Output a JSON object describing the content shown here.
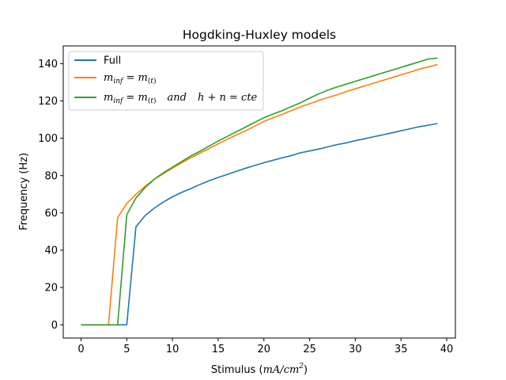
{
  "chart_data": {
    "type": "line",
    "title": "Hogdking-Huxley models",
    "xlabel": "Stimulus",
    "xlabel_math": "(mA/cm²)",
    "ylabel": "Frequency (Hz)",
    "xlim": [
      -1.95,
      40.95
    ],
    "ylim": [
      -7.1,
      149.5
    ],
    "xticks": [
      0,
      5,
      10,
      15,
      20,
      25,
      30,
      35,
      40
    ],
    "yticks": [
      0,
      20,
      40,
      60,
      80,
      100,
      120,
      140
    ],
    "grid": false,
    "legend_position": "top-left",
    "series": [
      {
        "name": "Full",
        "color": "#1f77b4",
        "x": [
          0,
          1,
          2,
          3,
          4,
          5,
          6,
          7,
          8,
          9,
          10,
          11,
          12,
          13,
          14,
          15,
          16,
          17,
          18,
          19,
          20,
          21,
          22,
          23,
          24,
          25,
          26,
          27,
          28,
          29,
          30,
          31,
          32,
          33,
          34,
          35,
          36,
          37,
          38,
          39
        ],
        "y": [
          0,
          0,
          0,
          0,
          0,
          0,
          52.5,
          58.5,
          62.5,
          65.8,
          68.6,
          71.0,
          73.0,
          75.2,
          77.2,
          79.0,
          80.6,
          82.3,
          83.9,
          85.4,
          86.9,
          88.2,
          89.5,
          90.7,
          92.2,
          93.2,
          94.2,
          95.4,
          96.6,
          97.5,
          98.7,
          99.7,
          100.8,
          101.8,
          102.9,
          104.0,
          105.1,
          106.2,
          107.0,
          107.9
        ]
      },
      {
        "name": "m_inf = m(t)",
        "name_display": "m_inf = m_(t)",
        "color": "#ff7f0e",
        "x": [
          0,
          1,
          2,
          3,
          4,
          5,
          6,
          7,
          8,
          9,
          10,
          11,
          12,
          13,
          14,
          15,
          16,
          17,
          18,
          19,
          20,
          21,
          22,
          23,
          24,
          25,
          26,
          27,
          28,
          29,
          30,
          31,
          32,
          33,
          34,
          35,
          36,
          37,
          38,
          39
        ],
        "y": [
          0,
          0,
          0,
          0,
          57.5,
          65.0,
          70.0,
          74.2,
          78.0,
          81.0,
          84.0,
          86.8,
          89.5,
          92.0,
          94.5,
          97.0,
          99.5,
          101.8,
          104.0,
          106.5,
          109.0,
          111.0,
          112.8,
          114.8,
          116.8,
          118.5,
          120.2,
          121.8,
          123.3,
          125.0,
          126.5,
          128.0,
          129.5,
          131.0,
          132.5,
          134.0,
          135.5,
          137.0,
          138.3,
          139.5
        ]
      },
      {
        "name": "m_inf = m(t) and h + n = cte",
        "name_display": "m_inf = m_(t)   and   h + n = cte",
        "color": "#2ca02c",
        "x": [
          0,
          1,
          2,
          3,
          4,
          5,
          6,
          7,
          8,
          9,
          10,
          11,
          12,
          13,
          14,
          15,
          16,
          17,
          18,
          19,
          20,
          21,
          22,
          23,
          24,
          25,
          26,
          27,
          28,
          29,
          30,
          31,
          32,
          33,
          34,
          35,
          36,
          37,
          38,
          39
        ],
        "y": [
          0,
          0,
          0,
          0,
          0,
          59.0,
          68.0,
          73.5,
          78.0,
          81.5,
          84.5,
          87.5,
          90.5,
          93.0,
          95.8,
          98.5,
          101.0,
          103.5,
          106.0,
          108.5,
          111.0,
          113.0,
          114.8,
          117.0,
          119.0,
          121.5,
          123.8,
          125.8,
          127.5,
          129.0,
          130.5,
          132.0,
          133.5,
          135.0,
          136.5,
          138.0,
          139.5,
          141.0,
          142.5,
          143.0
        ]
      }
    ],
    "legend": {
      "entries": [
        "Full",
        "m_inf = m(t)",
        "m_inf = m(t) and h + n = cte"
      ]
    }
  }
}
